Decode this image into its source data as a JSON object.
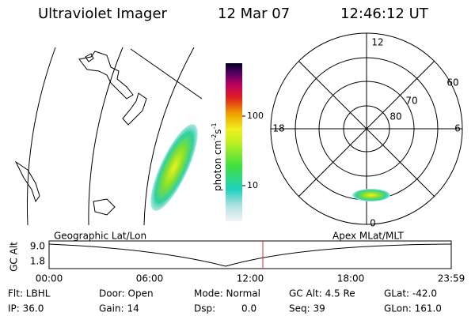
{
  "header": {
    "instrument": "Ultraviolet Imager",
    "date": "12 Mar 07",
    "time": "12:46:12 UT"
  },
  "colorbar": {
    "label": "photon cm",
    "exp1": "-2",
    "unit2": "s",
    "exp2": "-1",
    "ticks": [
      "100",
      "10"
    ]
  },
  "polar": {
    "mlt_labels": [
      "12",
      "18",
      "6",
      "0"
    ],
    "mlat_labels": [
      "60",
      "70",
      "80"
    ]
  },
  "projections": {
    "left": "Geographic Lat/Lon",
    "right": "Apex MLat/MLT"
  },
  "altitude_plot": {
    "ylabel": "GC Alt",
    "yticks": [
      "9.0",
      "1.8"
    ],
    "xticks": [
      "00:00",
      "06:00",
      "12:00",
      "18:00",
      "23:59"
    ]
  },
  "footer": {
    "rows": [
      [
        "Flt: LBHL",
        "Door: Open",
        "Mode: Normal",
        "GC Alt: 4.5 Re",
        "GLat: -42.0"
      ],
      [
        "IP: 36.0",
        "Gain: 14",
        "Dsp:",
        "Seq: 39",
        "GLon: 161.0"
      ]
    ],
    "dsp_value": "0.0"
  }
}
